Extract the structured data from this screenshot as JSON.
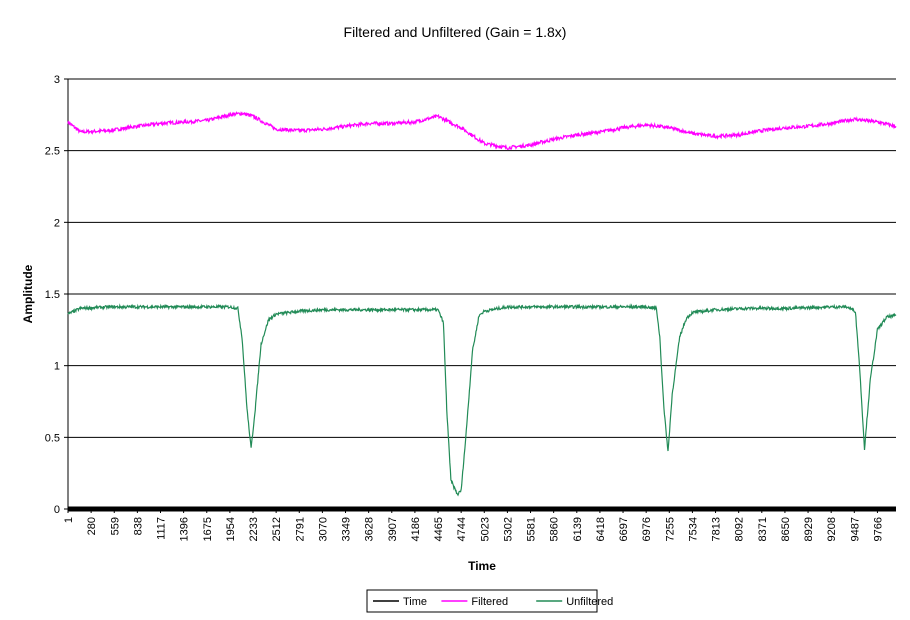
{
  "chart_data": {
    "type": "line",
    "title": "Filtered and Unfiltered (Gain = 1.8x)",
    "xlabel": "Time",
    "ylabel": "Amplitude",
    "ylim": [
      0,
      3
    ],
    "yticks": [
      "0",
      "0.5",
      "1",
      "1.5",
      "2",
      "2.5",
      "3"
    ],
    "xlim": [
      1,
      9990
    ],
    "xticks": [
      1,
      280,
      559,
      838,
      1117,
      1396,
      1675,
      1954,
      2233,
      2512,
      2791,
      3070,
      3349,
      3628,
      3907,
      4186,
      4465,
      4744,
      5023,
      5302,
      5581,
      5860,
      6139,
      6418,
      6697,
      6976,
      7255,
      7534,
      7813,
      8092,
      8371,
      8650,
      8929,
      9208,
      9487,
      9766
    ],
    "grid": "horizontal",
    "legend_position": "bottom",
    "colors": {
      "time": "#000000",
      "filtered": "#ff00ff",
      "unfiltered": "#228b57"
    },
    "series": [
      {
        "name": "Time",
        "values": [
          [
            1,
            0
          ],
          [
            9990,
            0
          ]
        ]
      },
      {
        "name": "Filtered",
        "noise": 0.012,
        "values": [
          [
            1,
            2.7
          ],
          [
            150,
            2.63
          ],
          [
            500,
            2.64
          ],
          [
            838,
            2.67
          ],
          [
            1117,
            2.69
          ],
          [
            1396,
            2.7
          ],
          [
            1675,
            2.71
          ],
          [
            1954,
            2.75
          ],
          [
            2100,
            2.76
          ],
          [
            2233,
            2.74
          ],
          [
            2512,
            2.65
          ],
          [
            2791,
            2.64
          ],
          [
            3070,
            2.65
          ],
          [
            3349,
            2.67
          ],
          [
            3628,
            2.69
          ],
          [
            3907,
            2.69
          ],
          [
            4186,
            2.7
          ],
          [
            4465,
            2.74
          ],
          [
            4600,
            2.7
          ],
          [
            4744,
            2.66
          ],
          [
            5023,
            2.55
          ],
          [
            5302,
            2.52
          ],
          [
            5581,
            2.54
          ],
          [
            5860,
            2.58
          ],
          [
            6139,
            2.61
          ],
          [
            6418,
            2.63
          ],
          [
            6697,
            2.66
          ],
          [
            6976,
            2.68
          ],
          [
            7255,
            2.66
          ],
          [
            7534,
            2.62
          ],
          [
            7813,
            2.6
          ],
          [
            8092,
            2.61
          ],
          [
            8371,
            2.64
          ],
          [
            8650,
            2.66
          ],
          [
            8929,
            2.67
          ],
          [
            9208,
            2.69
          ],
          [
            9487,
            2.72
          ],
          [
            9766,
            2.7
          ],
          [
            9990,
            2.67
          ]
        ]
      },
      {
        "name": "Unfiltered",
        "noise": 0.01,
        "values": [
          [
            1,
            1.36
          ],
          [
            150,
            1.4
          ],
          [
            500,
            1.41
          ],
          [
            1000,
            1.41
          ],
          [
            1500,
            1.41
          ],
          [
            1954,
            1.41
          ],
          [
            2050,
            1.4
          ],
          [
            2100,
            1.2
          ],
          [
            2160,
            0.7
          ],
          [
            2210,
            0.42
          ],
          [
            2260,
            0.7
          ],
          [
            2330,
            1.15
          ],
          [
            2420,
            1.32
          ],
          [
            2512,
            1.36
          ],
          [
            2791,
            1.38
          ],
          [
            3070,
            1.39
          ],
          [
            3500,
            1.39
          ],
          [
            4000,
            1.39
          ],
          [
            4465,
            1.39
          ],
          [
            4530,
            1.3
          ],
          [
            4570,
            0.7
          ],
          [
            4620,
            0.2
          ],
          [
            4700,
            0.1
          ],
          [
            4744,
            0.13
          ],
          [
            4800,
            0.5
          ],
          [
            4880,
            1.1
          ],
          [
            4960,
            1.35
          ],
          [
            5023,
            1.38
          ],
          [
            5302,
            1.41
          ],
          [
            5800,
            1.41
          ],
          [
            6400,
            1.41
          ],
          [
            6976,
            1.41
          ],
          [
            7100,
            1.4
          ],
          [
            7140,
            1.2
          ],
          [
            7190,
            0.7
          ],
          [
            7240,
            0.4
          ],
          [
            7290,
            0.8
          ],
          [
            7380,
            1.2
          ],
          [
            7460,
            1.33
          ],
          [
            7534,
            1.37
          ],
          [
            7813,
            1.39
          ],
          [
            8200,
            1.4
          ],
          [
            8700,
            1.4
          ],
          [
            9208,
            1.41
          ],
          [
            9400,
            1.41
          ],
          [
            9500,
            1.38
          ],
          [
            9550,
            1.0
          ],
          [
            9610,
            0.42
          ],
          [
            9680,
            0.9
          ],
          [
            9766,
            1.25
          ],
          [
            9880,
            1.34
          ],
          [
            9990,
            1.35
          ]
        ]
      }
    ]
  }
}
